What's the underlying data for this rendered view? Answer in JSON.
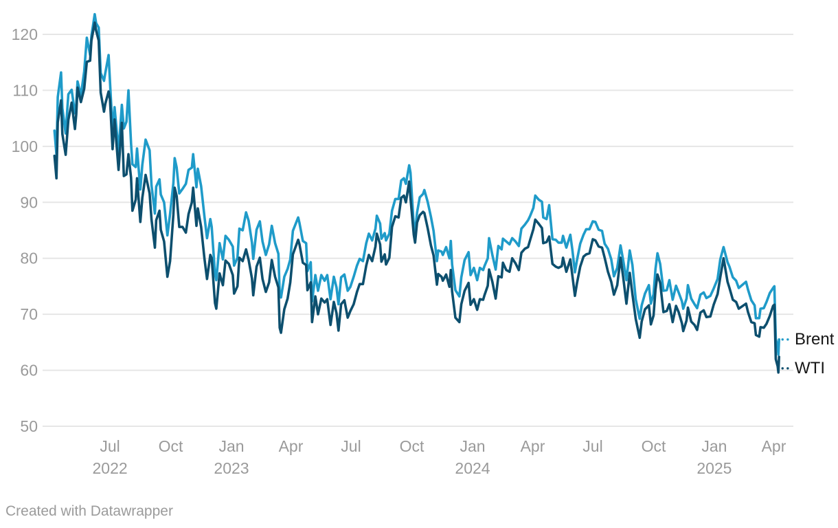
{
  "footer": {
    "credit": "Created with Datawrapper"
  },
  "chart_data": {
    "type": "line",
    "grid": true,
    "grid_color": "#e6e6e6",
    "axis_text_color": "#9a9a9a",
    "legend_position": "right-end-of-lines",
    "ylim": [
      50,
      125
    ],
    "xlim": [
      "2022-04-08",
      "2025-04-09"
    ],
    "y_ticks": [
      50,
      60,
      70,
      80,
      90,
      100,
      110,
      120
    ],
    "x_ticks": [
      {
        "label": "Jul",
        "year": "2022",
        "date": "2022-07-01"
      },
      {
        "label": "Oct",
        "date": "2022-10-01"
      },
      {
        "label": "Jan",
        "year": "2023",
        "date": "2023-01-01"
      },
      {
        "label": "Apr",
        "date": "2023-04-01"
      },
      {
        "label": "Jul",
        "date": "2023-07-01"
      },
      {
        "label": "Oct",
        "date": "2023-10-01"
      },
      {
        "label": "Jan",
        "year": "2024",
        "date": "2024-01-01"
      },
      {
        "label": "Apr",
        "date": "2024-04-01"
      },
      {
        "label": "Jul",
        "date": "2024-07-01"
      },
      {
        "label": "Oct",
        "date": "2024-10-01"
      },
      {
        "label": "Jan",
        "year": "2025",
        "date": "2025-01-01"
      },
      {
        "label": "Apr",
        "date": "2025-04-01"
      }
    ],
    "series": [
      {
        "name": "Brent",
        "color": "#1f9bc9"
      },
      {
        "name": "WTI",
        "color": "#0d4f6e"
      }
    ],
    "columns": [
      "date",
      "Brent",
      "WTI"
    ],
    "rows": [
      [
        "2022-04-08",
        102.8,
        98.3
      ],
      [
        "2022-04-11",
        98.5,
        94.3
      ],
      [
        "2022-04-13",
        108.8,
        104.3
      ],
      [
        "2022-04-18",
        113.2,
        108.2
      ],
      [
        "2022-04-20",
        106.8,
        102.2
      ],
      [
        "2022-04-25",
        102.3,
        98.5
      ],
      [
        "2022-04-29",
        109.3,
        104.7
      ],
      [
        "2022-05-04",
        110.1,
        107.8
      ],
      [
        "2022-05-09",
        105.9,
        103.1
      ],
      [
        "2022-05-11",
        107.5,
        105.7
      ],
      [
        "2022-05-13",
        111.6,
        110.5
      ],
      [
        "2022-05-18",
        109.1,
        107.9
      ],
      [
        "2022-05-23",
        113.4,
        110.3
      ],
      [
        "2022-05-27",
        119.4,
        115.1
      ],
      [
        "2022-06-01",
        116.3,
        115.3
      ],
      [
        "2022-06-03",
        119.7,
        118.9
      ],
      [
        "2022-06-08",
        123.6,
        122.1
      ],
      [
        "2022-06-10",
        122.0,
        120.7
      ],
      [
        "2022-06-14",
        121.2,
        118.9
      ],
      [
        "2022-06-17",
        113.1,
        109.6
      ],
      [
        "2022-06-22",
        111.7,
        106.2
      ],
      [
        "2022-06-24",
        113.1,
        107.6
      ],
      [
        "2022-06-29",
        116.3,
        109.8
      ],
      [
        "2022-07-01",
        111.6,
        108.4
      ],
      [
        "2022-07-05",
        102.8,
        99.5
      ],
      [
        "2022-07-08",
        107.0,
        104.8
      ],
      [
        "2022-07-14",
        99.1,
        95.8
      ],
      [
        "2022-07-19",
        107.4,
        104.2
      ],
      [
        "2022-07-22",
        103.2,
        94.7
      ],
      [
        "2022-07-26",
        104.4,
        95.0
      ],
      [
        "2022-07-29",
        110.0,
        98.6
      ],
      [
        "2022-08-02",
        100.5,
        94.4
      ],
      [
        "2022-08-04",
        96.8,
        88.5
      ],
      [
        "2022-08-09",
        96.3,
        90.5
      ],
      [
        "2022-08-11",
        99.6,
        94.3
      ],
      [
        "2022-08-16",
        92.3,
        86.5
      ],
      [
        "2022-08-19",
        96.7,
        90.8
      ],
      [
        "2022-08-24",
        101.2,
        94.9
      ],
      [
        "2022-08-30",
        99.3,
        91.6
      ],
      [
        "2022-09-02",
        93.0,
        86.9
      ],
      [
        "2022-09-07",
        88.0,
        81.9
      ],
      [
        "2022-09-09",
        92.8,
        86.8
      ],
      [
        "2022-09-14",
        94.1,
        88.5
      ],
      [
        "2022-09-16",
        91.4,
        85.1
      ],
      [
        "2022-09-21",
        90.0,
        83.0
      ],
      [
        "2022-09-26",
        84.1,
        76.7
      ],
      [
        "2022-09-30",
        87.9,
        79.5
      ],
      [
        "2022-10-05",
        93.4,
        87.8
      ],
      [
        "2022-10-07",
        97.9,
        92.6
      ],
      [
        "2022-10-10",
        96.2,
        91.1
      ],
      [
        "2022-10-14",
        91.6,
        85.6
      ],
      [
        "2022-10-19",
        92.4,
        85.6
      ],
      [
        "2022-10-24",
        93.3,
        84.6
      ],
      [
        "2022-10-28",
        95.8,
        87.9
      ],
      [
        "2022-11-02",
        96.2,
        90.0
      ],
      [
        "2022-11-04",
        98.6,
        92.6
      ],
      [
        "2022-11-09",
        92.7,
        85.8
      ],
      [
        "2022-11-11",
        96.0,
        88.9
      ],
      [
        "2022-11-16",
        92.9,
        85.6
      ],
      [
        "2022-11-21",
        87.5,
        80.0
      ],
      [
        "2022-11-25",
        83.6,
        76.3
      ],
      [
        "2022-11-30",
        87.0,
        80.6
      ],
      [
        "2022-12-02",
        85.6,
        80.0
      ],
      [
        "2022-12-07",
        77.2,
        72.0
      ],
      [
        "2022-12-09",
        76.1,
        71.0
      ],
      [
        "2022-12-14",
        82.7,
        77.3
      ],
      [
        "2022-12-19",
        79.8,
        75.2
      ],
      [
        "2022-12-23",
        84.0,
        79.6
      ],
      [
        "2022-12-28",
        83.3,
        79.0
      ],
      [
        "2023-01-03",
        82.1,
        77.0
      ],
      [
        "2023-01-05",
        78.7,
        73.7
      ],
      [
        "2023-01-10",
        80.1,
        75.0
      ],
      [
        "2023-01-13",
        85.3,
        80.1
      ],
      [
        "2023-01-18",
        85.0,
        79.5
      ],
      [
        "2023-01-23",
        88.2,
        81.6
      ],
      [
        "2023-01-27",
        86.7,
        79.7
      ],
      [
        "2023-02-01",
        82.8,
        76.4
      ],
      [
        "2023-02-03",
        79.9,
        73.4
      ],
      [
        "2023-02-08",
        85.1,
        78.5
      ],
      [
        "2023-02-13",
        86.6,
        80.1
      ],
      [
        "2023-02-17",
        83.0,
        76.3
      ],
      [
        "2023-02-22",
        80.6,
        74.0
      ],
      [
        "2023-02-27",
        82.5,
        75.7
      ],
      [
        "2023-03-03",
        85.8,
        79.7
      ],
      [
        "2023-03-08",
        82.7,
        76.7
      ],
      [
        "2023-03-13",
        80.8,
        74.8
      ],
      [
        "2023-03-15",
        73.7,
        67.6
      ],
      [
        "2023-03-17",
        73.0,
        66.7
      ],
      [
        "2023-03-22",
        76.7,
        70.9
      ],
      [
        "2023-03-27",
        78.1,
        72.8
      ],
      [
        "2023-03-31",
        79.8,
        75.7
      ],
      [
        "2023-04-04",
        84.9,
        80.7
      ],
      [
        "2023-04-12",
        87.3,
        83.3
      ],
      [
        "2023-04-14",
        86.3,
        82.5
      ],
      [
        "2023-04-19",
        83.1,
        79.2
      ],
      [
        "2023-04-24",
        82.7,
        78.8
      ],
      [
        "2023-04-26",
        77.7,
        74.3
      ],
      [
        "2023-05-01",
        79.3,
        75.7
      ],
      [
        "2023-05-03",
        72.3,
        68.6
      ],
      [
        "2023-05-08",
        77.0,
        73.2
      ],
      [
        "2023-05-12",
        74.2,
        70.0
      ],
      [
        "2023-05-17",
        77.0,
        72.8
      ],
      [
        "2023-05-22",
        76.0,
        72.1
      ],
      [
        "2023-05-26",
        77.0,
        72.7
      ],
      [
        "2023-05-31",
        72.7,
        68.1
      ],
      [
        "2023-06-05",
        76.7,
        72.2
      ],
      [
        "2023-06-09",
        74.8,
        70.2
      ],
      [
        "2023-06-12",
        71.8,
        67.1
      ],
      [
        "2023-06-16",
        76.6,
        71.8
      ],
      [
        "2023-06-21",
        77.1,
        72.5
      ],
      [
        "2023-06-26",
        74.2,
        69.4
      ],
      [
        "2023-06-30",
        74.9,
        70.6
      ],
      [
        "2023-07-05",
        76.7,
        71.8
      ],
      [
        "2023-07-10",
        78.7,
        74.0
      ],
      [
        "2023-07-14",
        79.9,
        75.4
      ],
      [
        "2023-07-19",
        79.5,
        75.4
      ],
      [
        "2023-07-24",
        82.7,
        78.7
      ],
      [
        "2023-07-28",
        84.4,
        80.6
      ],
      [
        "2023-08-02",
        83.2,
        79.5
      ],
      [
        "2023-08-07",
        85.3,
        82.1
      ],
      [
        "2023-08-09",
        87.6,
        84.4
      ],
      [
        "2023-08-14",
        86.2,
        82.5
      ],
      [
        "2023-08-16",
        83.5,
        79.4
      ],
      [
        "2023-08-21",
        84.5,
        80.7
      ],
      [
        "2023-08-23",
        83.2,
        78.9
      ],
      [
        "2023-08-28",
        84.4,
        80.1
      ],
      [
        "2023-09-01",
        88.5,
        85.6
      ],
      [
        "2023-09-06",
        90.6,
        87.5
      ],
      [
        "2023-09-11",
        90.6,
        87.3
      ],
      [
        "2023-09-15",
        93.9,
        90.8
      ],
      [
        "2023-09-19",
        94.3,
        91.2
      ],
      [
        "2023-09-22",
        93.3,
        90.0
      ],
      [
        "2023-09-27",
        96.6,
        93.7
      ],
      [
        "2023-09-29",
        95.3,
        90.8
      ],
      [
        "2023-10-04",
        85.8,
        84.2
      ],
      [
        "2023-10-06",
        84.6,
        82.8
      ],
      [
        "2023-10-09",
        88.2,
        86.4
      ],
      [
        "2023-10-13",
        90.9,
        87.7
      ],
      [
        "2023-10-18",
        91.5,
        88.3
      ],
      [
        "2023-10-20",
        92.2,
        88.1
      ],
      [
        "2023-10-25",
        90.1,
        85.4
      ],
      [
        "2023-10-30",
        87.4,
        82.3
      ],
      [
        "2023-11-03",
        84.9,
        80.5
      ],
      [
        "2023-11-08",
        79.5,
        75.3
      ],
      [
        "2023-11-10",
        81.4,
        77.2
      ],
      [
        "2023-11-15",
        81.2,
        76.7
      ],
      [
        "2023-11-17",
        80.6,
        76.0
      ],
      [
        "2023-11-22",
        82.0,
        77.1
      ],
      [
        "2023-11-27",
        80.0,
        74.9
      ],
      [
        "2023-11-29",
        83.1,
        77.9
      ],
      [
        "2023-12-01",
        78.9,
        74.1
      ],
      [
        "2023-12-06",
        74.3,
        69.4
      ],
      [
        "2023-12-12",
        73.2,
        68.6
      ],
      [
        "2023-12-15",
        76.6,
        71.8
      ],
      [
        "2023-12-20",
        79.7,
        74.2
      ],
      [
        "2023-12-26",
        81.1,
        75.6
      ],
      [
        "2023-12-29",
        77.0,
        71.7
      ],
      [
        "2024-01-03",
        78.3,
        72.7
      ],
      [
        "2024-01-08",
        76.1,
        70.8
      ],
      [
        "2024-01-12",
        78.3,
        72.7
      ],
      [
        "2024-01-17",
        77.9,
        72.6
      ],
      [
        "2024-01-19",
        78.6,
        73.4
      ],
      [
        "2024-01-24",
        80.0,
        75.1
      ],
      [
        "2024-01-26",
        83.6,
        78.0
      ],
      [
        "2024-01-31",
        80.6,
        75.8
      ],
      [
        "2024-02-05",
        78.0,
        72.8
      ],
      [
        "2024-02-09",
        82.2,
        76.8
      ],
      [
        "2024-02-14",
        81.6,
        76.6
      ],
      [
        "2024-02-16",
        83.5,
        79.2
      ],
      [
        "2024-02-21",
        83.0,
        77.9
      ],
      [
        "2024-02-26",
        82.5,
        77.6
      ],
      [
        "2024-03-01",
        83.6,
        80.0
      ],
      [
        "2024-03-06",
        83.0,
        79.1
      ],
      [
        "2024-03-11",
        82.2,
        77.9
      ],
      [
        "2024-03-15",
        85.3,
        81.0
      ],
      [
        "2024-03-20",
        86.0,
        81.7
      ],
      [
        "2024-03-25",
        86.8,
        82.0
      ],
      [
        "2024-03-28",
        87.5,
        83.2
      ],
      [
        "2024-04-02",
        89.0,
        85.2
      ],
      [
        "2024-04-05",
        91.2,
        86.9
      ],
      [
        "2024-04-10",
        90.5,
        86.2
      ],
      [
        "2024-04-15",
        90.1,
        85.4
      ],
      [
        "2024-04-17",
        87.3,
        82.7
      ],
      [
        "2024-04-22",
        87.0,
        82.9
      ],
      [
        "2024-04-26",
        89.5,
        83.9
      ],
      [
        "2024-05-01",
        83.4,
        79.0
      ],
      [
        "2024-05-06",
        83.3,
        78.5
      ],
      [
        "2024-05-10",
        82.8,
        78.3
      ],
      [
        "2024-05-15",
        82.8,
        78.6
      ],
      [
        "2024-05-17",
        84.0,
        80.1
      ],
      [
        "2024-05-22",
        81.9,
        77.6
      ],
      [
        "2024-05-28",
        84.2,
        79.8
      ],
      [
        "2024-05-31",
        81.6,
        77.0
      ],
      [
        "2024-06-04",
        77.5,
        73.3
      ],
      [
        "2024-06-07",
        79.6,
        75.5
      ],
      [
        "2024-06-12",
        82.6,
        78.5
      ],
      [
        "2024-06-17",
        84.2,
        80.3
      ],
      [
        "2024-06-21",
        85.2,
        80.7
      ],
      [
        "2024-06-26",
        85.2,
        80.9
      ],
      [
        "2024-07-01",
        86.6,
        83.4
      ],
      [
        "2024-07-05",
        86.5,
        83.2
      ],
      [
        "2024-07-10",
        85.1,
        82.1
      ],
      [
        "2024-07-15",
        84.9,
        81.9
      ],
      [
        "2024-07-19",
        82.6,
        80.1
      ],
      [
        "2024-07-24",
        81.7,
        77.6
      ],
      [
        "2024-07-29",
        79.8,
        75.8
      ],
      [
        "2024-08-02",
        76.8,
        73.5
      ],
      [
        "2024-08-07",
        78.3,
        75.2
      ],
      [
        "2024-08-12",
        82.3,
        80.1
      ],
      [
        "2024-08-16",
        79.7,
        76.7
      ],
      [
        "2024-08-21",
        76.1,
        71.9
      ],
      [
        "2024-08-26",
        81.4,
        77.4
      ],
      [
        "2024-08-30",
        78.8,
        73.6
      ],
      [
        "2024-09-04",
        72.7,
        69.2
      ],
      [
        "2024-09-10",
        69.2,
        65.8
      ],
      [
        "2024-09-13",
        71.6,
        68.7
      ],
      [
        "2024-09-18",
        73.7,
        70.9
      ],
      [
        "2024-09-24",
        75.2,
        71.6
      ],
      [
        "2024-09-27",
        71.9,
        68.2
      ],
      [
        "2024-10-01",
        73.6,
        69.8
      ],
      [
        "2024-10-04",
        78.1,
        74.4
      ],
      [
        "2024-10-07",
        80.9,
        77.1
      ],
      [
        "2024-10-11",
        79.0,
        75.6
      ],
      [
        "2024-10-16",
        74.2,
        70.4
      ],
      [
        "2024-10-21",
        74.3,
        70.6
      ],
      [
        "2024-10-25",
        76.1,
        71.8
      ],
      [
        "2024-10-30",
        72.6,
        68.6
      ],
      [
        "2024-11-04",
        75.1,
        71.5
      ],
      [
        "2024-11-08",
        73.9,
        70.4
      ],
      [
        "2024-11-13",
        72.3,
        68.4
      ],
      [
        "2024-11-15",
        71.0,
        67.0
      ],
      [
        "2024-11-20",
        72.8,
        68.9
      ],
      [
        "2024-11-22",
        75.2,
        71.2
      ],
      [
        "2024-11-27",
        72.8,
        68.7
      ],
      [
        "2024-12-02",
        71.8,
        68.1
      ],
      [
        "2024-12-06",
        71.1,
        67.2
      ],
      [
        "2024-12-11",
        73.5,
        70.3
      ],
      [
        "2024-12-16",
        73.9,
        70.7
      ],
      [
        "2024-12-20",
        72.9,
        69.5
      ],
      [
        "2024-12-26",
        73.3,
        69.6
      ],
      [
        "2024-12-31",
        74.6,
        71.7
      ],
      [
        "2025-01-06",
        76.3,
        73.6
      ],
      [
        "2025-01-10",
        79.8,
        76.6
      ],
      [
        "2025-01-15",
        82.0,
        80.0
      ],
      [
        "2025-01-21",
        79.3,
        75.8
      ],
      [
        "2025-01-24",
        78.5,
        74.7
      ],
      [
        "2025-01-29",
        76.6,
        72.6
      ],
      [
        "2025-02-03",
        76.0,
        72.2
      ],
      [
        "2025-02-07",
        74.7,
        71.0
      ],
      [
        "2025-02-12",
        75.2,
        71.4
      ],
      [
        "2025-02-18",
        75.8,
        71.9
      ],
      [
        "2025-02-21",
        74.4,
        70.4
      ],
      [
        "2025-02-26",
        72.5,
        68.6
      ],
      [
        "2025-03-03",
        71.6,
        68.4
      ],
      [
        "2025-03-05",
        69.3,
        66.3
      ],
      [
        "2025-03-10",
        69.3,
        66.0
      ],
      [
        "2025-03-12",
        71.0,
        67.7
      ],
      [
        "2025-03-17",
        71.1,
        67.6
      ],
      [
        "2025-03-21",
        72.2,
        68.3
      ],
      [
        "2025-03-26",
        73.8,
        69.7
      ],
      [
        "2025-03-31",
        74.7,
        71.5
      ],
      [
        "2025-04-02",
        75.0,
        71.7
      ],
      [
        "2025-04-03",
        70.1,
        66.9
      ],
      [
        "2025-04-04",
        65.6,
        62.0
      ],
      [
        "2025-04-07",
        64.2,
        60.7
      ],
      [
        "2025-04-08",
        62.8,
        59.6
      ],
      [
        "2025-04-09",
        65.5,
        62.4
      ]
    ]
  }
}
